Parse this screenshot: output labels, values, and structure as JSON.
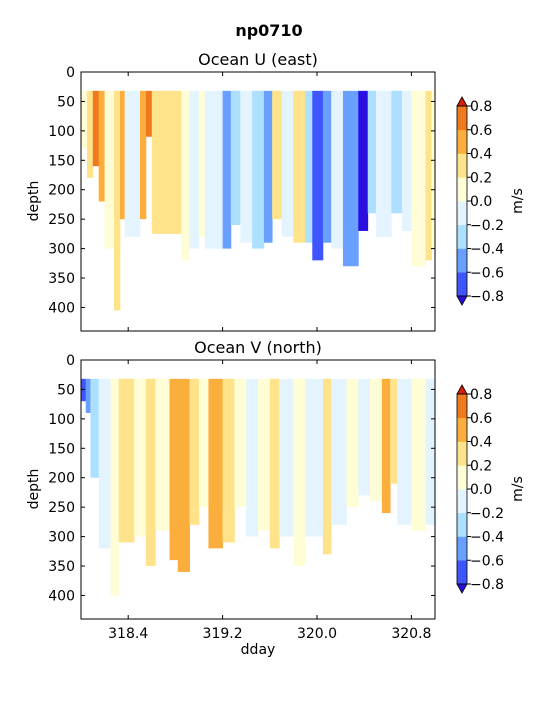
{
  "suptitle": "np0710",
  "chart_data": [
    {
      "type": "heatmap",
      "title": "Ocean U (east)",
      "ylabel": "depth",
      "xlabel": "",
      "xlim": [
        318.0,
        321.0
      ],
      "ylim": [
        0,
        440
      ],
      "y_inverted": true,
      "yticks": [
        0,
        50,
        100,
        150,
        200,
        250,
        300,
        350,
        400
      ],
      "xticks": [
        318.4,
        319.2,
        320.0,
        320.8
      ],
      "xtick_labels_visible": false,
      "colorbar": {
        "label": "m/s",
        "levels": [
          -0.8,
          -0.6,
          -0.4,
          -0.2,
          0.0,
          0.2,
          0.4,
          0.6,
          0.8
        ],
        "extend": "both"
      },
      "data_top_depth": 32,
      "columns": [
        {
          "start": 318.0,
          "end": 318.05,
          "value": 0.1,
          "bottom": 130
        },
        {
          "start": 318.05,
          "end": 318.1,
          "value": 0.3,
          "bottom": 180
        },
        {
          "start": 318.1,
          "end": 318.15,
          "value": 0.7,
          "bottom": 160
        },
        {
          "start": 318.15,
          "end": 318.2,
          "value": 0.5,
          "bottom": 220
        },
        {
          "start": 318.2,
          "end": 318.28,
          "value": 0.1,
          "bottom": 300
        },
        {
          "start": 318.28,
          "end": 318.33,
          "value": 0.3,
          "bottom": 405
        },
        {
          "start": 318.33,
          "end": 318.37,
          "value": 0.5,
          "bottom": 250
        },
        {
          "start": 318.37,
          "end": 318.5,
          "value": -0.1,
          "bottom": 280
        },
        {
          "start": 318.5,
          "end": 318.55,
          "value": 0.5,
          "bottom": 250
        },
        {
          "start": 318.55,
          "end": 318.6,
          "value": 0.7,
          "bottom": 110
        },
        {
          "start": 318.6,
          "end": 318.85,
          "value": 0.3,
          "bottom": 275
        },
        {
          "start": 318.85,
          "end": 318.92,
          "value": 0.1,
          "bottom": 320
        },
        {
          "start": 318.92,
          "end": 319.0,
          "value": -0.1,
          "bottom": 300
        },
        {
          "start": 319.0,
          "end": 319.05,
          "value": 0.1,
          "bottom": 280
        },
        {
          "start": 319.05,
          "end": 319.2,
          "value": -0.1,
          "bottom": 300
        },
        {
          "start": 319.2,
          "end": 319.27,
          "value": -0.5,
          "bottom": 300
        },
        {
          "start": 319.27,
          "end": 319.35,
          "value": -0.3,
          "bottom": 260
        },
        {
          "start": 319.35,
          "end": 319.45,
          "value": -0.1,
          "bottom": 290
        },
        {
          "start": 319.45,
          "end": 319.55,
          "value": -0.3,
          "bottom": 300
        },
        {
          "start": 319.55,
          "end": 319.62,
          "value": -0.5,
          "bottom": 290
        },
        {
          "start": 319.62,
          "end": 319.7,
          "value": 0.3,
          "bottom": 250
        },
        {
          "start": 319.7,
          "end": 319.8,
          "value": -0.1,
          "bottom": 280
        },
        {
          "start": 319.8,
          "end": 319.9,
          "value": 0.3,
          "bottom": 290
        },
        {
          "start": 319.9,
          "end": 319.96,
          "value": -0.3,
          "bottom": 290
        },
        {
          "start": 319.96,
          "end": 320.05,
          "value": -0.7,
          "bottom": 320
        },
        {
          "start": 320.05,
          "end": 320.12,
          "value": -0.5,
          "bottom": 290
        },
        {
          "start": 320.12,
          "end": 320.22,
          "value": -0.1,
          "bottom": 300
        },
        {
          "start": 320.22,
          "end": 320.35,
          "value": -0.5,
          "bottom": 330
        },
        {
          "start": 320.35,
          "end": 320.43,
          "value": -0.9,
          "bottom": 270
        },
        {
          "start": 320.43,
          "end": 320.5,
          "value": -0.3,
          "bottom": 240
        },
        {
          "start": 320.5,
          "end": 320.63,
          "value": -0.1,
          "bottom": 280
        },
        {
          "start": 320.63,
          "end": 320.72,
          "value": -0.3,
          "bottom": 240
        },
        {
          "start": 320.72,
          "end": 320.8,
          "value": -0.1,
          "bottom": 270
        },
        {
          "start": 320.8,
          "end": 320.92,
          "value": 0.1,
          "bottom": 330
        },
        {
          "start": 320.92,
          "end": 320.97,
          "value": 0.3,
          "bottom": 320
        },
        {
          "start": 320.97,
          "end": 321.0,
          "value": 0.1,
          "bottom": 300
        }
      ]
    },
    {
      "type": "heatmap",
      "title": "Ocean V (north)",
      "ylabel": "depth",
      "xlabel": "dday",
      "xlim": [
        318.0,
        321.0
      ],
      "ylim": [
        0,
        440
      ],
      "y_inverted": true,
      "yticks": [
        0,
        50,
        100,
        150,
        200,
        250,
        300,
        350,
        400
      ],
      "xticks": [
        318.4,
        319.2,
        320.0,
        320.8
      ],
      "xtick_labels_visible": true,
      "colorbar": {
        "label": "m/s",
        "levels": [
          -0.8,
          -0.6,
          -0.4,
          -0.2,
          0.0,
          0.2,
          0.4,
          0.6,
          0.8
        ],
        "extend": "both"
      },
      "data_top_depth": 32,
      "columns": [
        {
          "start": 318.0,
          "end": 318.04,
          "value": -0.7,
          "bottom": 70
        },
        {
          "start": 318.04,
          "end": 318.08,
          "value": -0.5,
          "bottom": 90
        },
        {
          "start": 318.08,
          "end": 318.15,
          "value": -0.3,
          "bottom": 200
        },
        {
          "start": 318.15,
          "end": 318.25,
          "value": -0.1,
          "bottom": 320
        },
        {
          "start": 318.25,
          "end": 318.32,
          "value": 0.1,
          "bottom": 400
        },
        {
          "start": 318.32,
          "end": 318.45,
          "value": 0.3,
          "bottom": 310
        },
        {
          "start": 318.45,
          "end": 318.55,
          "value": 0.1,
          "bottom": 300
        },
        {
          "start": 318.55,
          "end": 318.63,
          "value": 0.3,
          "bottom": 350
        },
        {
          "start": 318.63,
          "end": 318.75,
          "value": 0.1,
          "bottom": 290
        },
        {
          "start": 318.75,
          "end": 318.82,
          "value": 0.5,
          "bottom": 340
        },
        {
          "start": 318.82,
          "end": 318.92,
          "value": 0.5,
          "bottom": 360
        },
        {
          "start": 318.92,
          "end": 319.0,
          "value": 0.3,
          "bottom": 280
        },
        {
          "start": 319.0,
          "end": 319.08,
          "value": 0.1,
          "bottom": 250
        },
        {
          "start": 319.08,
          "end": 319.2,
          "value": 0.5,
          "bottom": 320
        },
        {
          "start": 319.2,
          "end": 319.3,
          "value": 0.3,
          "bottom": 310
        },
        {
          "start": 319.3,
          "end": 319.4,
          "value": 0.1,
          "bottom": 250
        },
        {
          "start": 319.4,
          "end": 319.5,
          "value": -0.1,
          "bottom": 300
        },
        {
          "start": 319.5,
          "end": 319.6,
          "value": 0.1,
          "bottom": 290
        },
        {
          "start": 319.6,
          "end": 319.68,
          "value": 0.3,
          "bottom": 320
        },
        {
          "start": 319.68,
          "end": 319.8,
          "value": -0.1,
          "bottom": 300
        },
        {
          "start": 319.8,
          "end": 319.9,
          "value": 0.1,
          "bottom": 350
        },
        {
          "start": 319.9,
          "end": 320.05,
          "value": -0.1,
          "bottom": 300
        },
        {
          "start": 320.05,
          "end": 320.12,
          "value": 0.3,
          "bottom": 330
        },
        {
          "start": 320.12,
          "end": 320.25,
          "value": -0.1,
          "bottom": 280
        },
        {
          "start": 320.25,
          "end": 320.35,
          "value": 0.1,
          "bottom": 250
        },
        {
          "start": 320.35,
          "end": 320.45,
          "value": -0.1,
          "bottom": 230
        },
        {
          "start": 320.45,
          "end": 320.55,
          "value": 0.1,
          "bottom": 240
        },
        {
          "start": 320.55,
          "end": 320.62,
          "value": 0.5,
          "bottom": 260
        },
        {
          "start": 320.62,
          "end": 320.68,
          "value": 0.3,
          "bottom": 210
        },
        {
          "start": 320.68,
          "end": 320.8,
          "value": -0.1,
          "bottom": 280
        },
        {
          "start": 320.8,
          "end": 320.92,
          "value": 0.1,
          "bottom": 290
        },
        {
          "start": 320.92,
          "end": 321.0,
          "value": -0.1,
          "bottom": 280
        }
      ]
    }
  ]
}
